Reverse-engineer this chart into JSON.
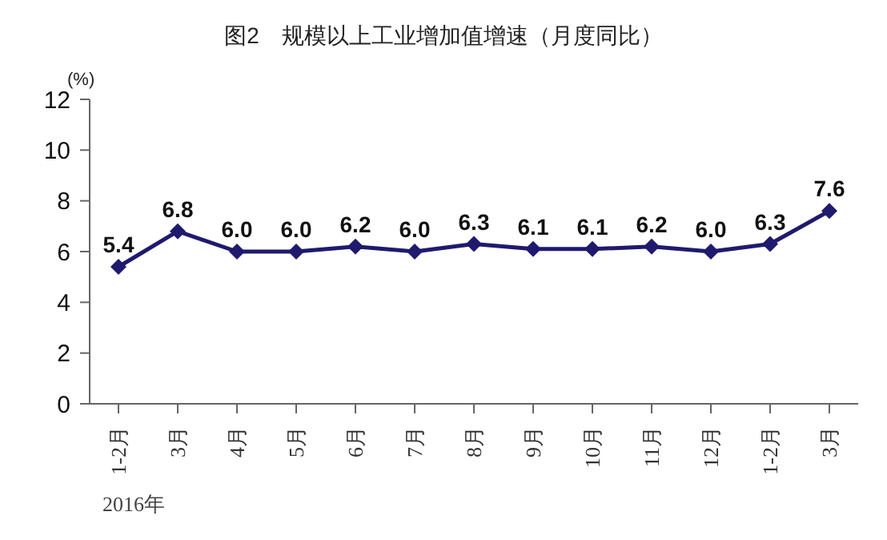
{
  "chart_data": {
    "type": "line",
    "title": "图2　规模以上工业增加值增速（月度同比）",
    "ylabel": "(%)",
    "categories": [
      "1-2月",
      "3月",
      "4月",
      "5月",
      "6月",
      "7月",
      "8月",
      "9月",
      "10月",
      "11月",
      "12月",
      "1-2月",
      "3月"
    ],
    "series": [
      {
        "color": "#1f1a6e",
        "values": [
          5.4,
          6.8,
          6.0,
          6.0,
          6.2,
          6.0,
          6.3,
          6.1,
          6.1,
          6.2,
          6.0,
          6.3,
          7.6
        ]
      }
    ],
    "ylim": [
      0,
      12
    ],
    "yticks": [
      0,
      2,
      4,
      6,
      8,
      10,
      12
    ],
    "grid": false,
    "marker": "diamond",
    "line_style": "solid",
    "value_labels": [
      "5.4",
      "6.8",
      "6.0",
      "6.0",
      "6.2",
      "6.0",
      "6.3",
      "6.1",
      "6.1",
      "6.2",
      "6.0",
      "6.3",
      "7.6"
    ],
    "annotations": [
      "2016年"
    ]
  }
}
